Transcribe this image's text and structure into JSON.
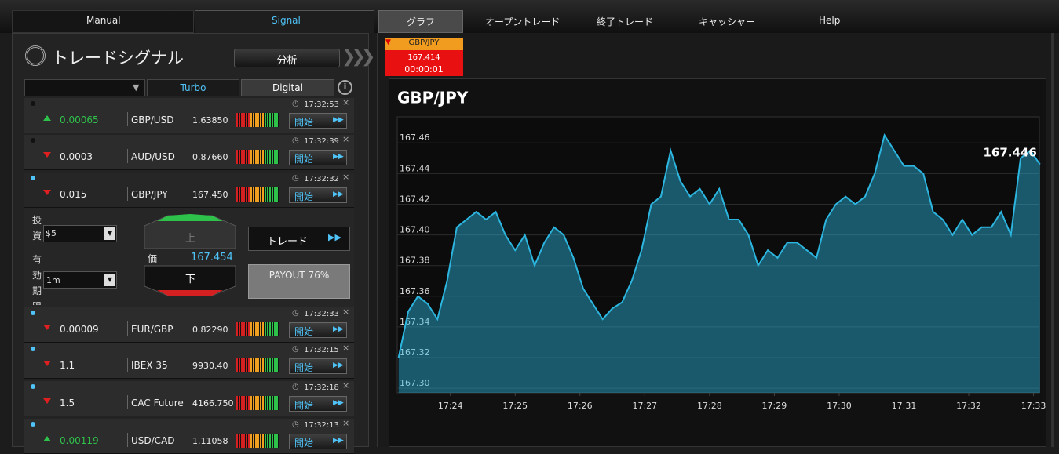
{
  "nav": [
    "Manual",
    "Signal",
    "グラフ",
    "オープントレード",
    "終了トレード",
    "キャッシャー",
    "Help"
  ],
  "signals_panel": {
    "title": "トレードシグナル",
    "analyze_button": "分析",
    "filters": [
      "Turbo",
      "Digital"
    ],
    "start_button": "開始",
    "signals": [
      {
        "time": "17:32:53",
        "direction": "up",
        "change": "0.00065",
        "pair": "GBP/USD",
        "price": "1.63850"
      },
      {
        "time": "17:32:39",
        "direction": "down",
        "change": "0.0003",
        "pair": "AUD/USD",
        "price": "0.87660"
      },
      {
        "time": "17:32:32",
        "direction": "down",
        "change": "0.015",
        "pair": "GBP/JPY",
        "price": "167.450"
      },
      {
        "time": "17:32:33",
        "direction": "down",
        "change": "0.00009",
        "pair": "EUR/GBP",
        "price": "0.82290"
      },
      {
        "time": "17:32:15",
        "direction": "down",
        "change": "1.1",
        "pair": "IBEX 35",
        "price": "9930.40"
      },
      {
        "time": "17:32:18",
        "direction": "down",
        "change": "1.5",
        "pair": "CAC Future",
        "price": "4166.750"
      },
      {
        "time": "17:32:13",
        "direction": "up",
        "change": "0.00119",
        "pair": "USD/CAD",
        "price": "1.11058"
      }
    ],
    "trade_form": {
      "invest_label": "投資",
      "amount": "$5",
      "expiry_label": "有効期限",
      "expiry": "1m",
      "up_button": "上",
      "down_button": "下",
      "price_label": "価",
      "price": "167.454",
      "trade_button": "トレード",
      "payout": "PAYOUT 76%"
    }
  },
  "ticker": {
    "pair": "GBP/JPY",
    "price": "167.414",
    "countdown": "00:00:01"
  },
  "chart_data": {
    "type": "area",
    "title": "GBP/JPY",
    "color": "#2cb5df",
    "grid": true,
    "x": [
      1043.2,
      1043.35,
      1043.5,
      1043.65,
      1043.8,
      1043.95,
      1044.1,
      1044.25,
      1044.4,
      1044.55,
      1044.7,
      1044.85,
      1045.0,
      1045.15,
      1045.3,
      1045.45,
      1045.6,
      1045.75,
      1045.9,
      1046.05,
      1046.2,
      1046.35,
      1046.5,
      1046.65,
      1046.8,
      1046.95,
      1047.1,
      1047.25,
      1047.4,
      1047.55,
      1047.7,
      1047.85,
      1048.0,
      1048.15,
      1048.3,
      1048.45,
      1048.6,
      1048.75,
      1048.9,
      1049.05,
      1049.2,
      1049.35,
      1049.5,
      1049.65,
      1049.8,
      1049.95,
      1050.1,
      1050.25,
      1050.4,
      1050.55,
      1050.7,
      1050.85,
      1051.0,
      1051.15,
      1051.3,
      1051.45,
      1051.6,
      1051.75,
      1051.9,
      1052.05,
      1052.2,
      1052.35,
      1052.5,
      1052.65,
      1052.8,
      1052.95,
      1053.1
    ],
    "values": [
      167.32,
      167.35,
      167.36,
      167.355,
      167.345,
      167.37,
      167.405,
      167.41,
      167.415,
      167.41,
      167.415,
      167.4,
      167.39,
      167.4,
      167.38,
      167.395,
      167.405,
      167.4,
      167.385,
      167.365,
      167.355,
      167.345,
      167.352,
      167.356,
      167.37,
      167.39,
      167.42,
      167.425,
      167.455,
      167.435,
      167.425,
      167.43,
      167.42,
      167.43,
      167.41,
      167.41,
      167.4,
      167.38,
      167.39,
      167.385,
      167.395,
      167.395,
      167.39,
      167.385,
      167.41,
      167.42,
      167.425,
      167.42,
      167.425,
      167.44,
      167.465,
      167.455,
      167.445,
      167.445,
      167.44,
      167.415,
      167.41,
      167.4,
      167.41,
      167.4,
      167.405,
      167.405,
      167.415,
      167.4,
      167.45,
      167.455,
      167.446
    ],
    "xlim": [
      1043.18,
      1053.09
    ],
    "xticks": [
      {
        "value": 1044,
        "label": "17:24"
      },
      {
        "value": 1045,
        "label": "17:25"
      },
      {
        "value": 1046,
        "label": "17:26"
      },
      {
        "value": 1047,
        "label": "17:27"
      },
      {
        "value": 1048,
        "label": "17:28"
      },
      {
        "value": 1049,
        "label": "17:29"
      },
      {
        "value": 1050,
        "label": "17:30"
      },
      {
        "value": 1051,
        "label": "17:31"
      },
      {
        "value": 1052,
        "label": "17:32"
      },
      {
        "value": 1053,
        "label": "17:33"
      }
    ],
    "ylim": [
      167.297,
      167.477
    ],
    "yticks": [
      {
        "value": 167.3,
        "label": "167.30"
      },
      167.32,
      167.34,
      167.36,
      167.38,
      {
        "value": 167.4,
        "label": "167.40"
      },
      167.42,
      167.44,
      167.46
    ]
  }
}
